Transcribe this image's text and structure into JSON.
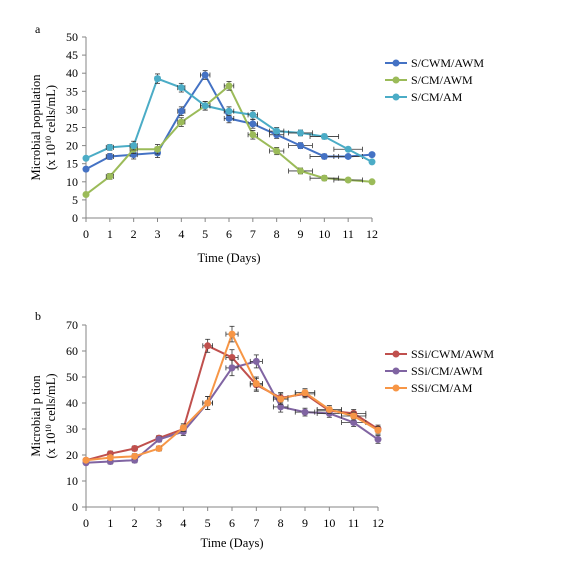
{
  "chart_data": [
    {
      "panel_label": "a",
      "type": "line",
      "xlabel": "Time (Days)",
      "ylabel": [
        "Microbial population",
        "(x 10",
        "10",
        " cells/mL)"
      ],
      "x": [
        0,
        1,
        2,
        3,
        4,
        5,
        6,
        7,
        8,
        9,
        10,
        11,
        12
      ],
      "xlim": [
        0,
        12
      ],
      "ylim": [
        0,
        50
      ],
      "yticks": [
        0,
        5,
        10,
        15,
        20,
        25,
        30,
        35,
        40,
        45,
        50
      ],
      "grid": false,
      "legend": "right",
      "series": [
        {
          "name": "S/CWM/AWM",
          "color": "#4472C4",
          "values": [
            13.5,
            17,
            17.5,
            18,
            29.5,
            39.5,
            27.5,
            26,
            23,
            20,
            17,
            17,
            17.5
          ]
        },
        {
          "name": "S/CM/AWM",
          "color": "#9BBB59",
          "values": [
            6.5,
            11.5,
            19,
            19,
            26.5,
            31,
            36.5,
            23,
            18.5,
            13,
            11,
            10.5,
            10
          ]
        },
        {
          "name": "S/CM/AM",
          "color": "#4BACC6",
          "values": [
            16.5,
            19.5,
            20,
            38.5,
            36,
            31,
            29.5,
            28.5,
            24,
            23.5,
            22.5,
            19,
            15.5
          ]
        }
      ]
    },
    {
      "panel_label": "b",
      "type": "line",
      "xlabel": "Time (Days)",
      "ylabel": [
        "Microbial p",
        "tion",
        "(x 10",
        "10",
        " cells/mL)"
      ],
      "x": [
        0,
        1,
        2,
        3,
        4,
        5,
        6,
        7,
        8,
        9,
        10,
        11,
        12
      ],
      "xlim": [
        0,
        12
      ],
      "ylim": [
        0,
        70
      ],
      "yticks": [
        0,
        10,
        20,
        30,
        40,
        50,
        60,
        70
      ],
      "grid": false,
      "legend": "right",
      "series": [
        {
          "name": "SSi/CWM/AWM",
          "color": "#C0504D",
          "values": [
            18,
            20.5,
            22.5,
            26.5,
            30,
            62,
            57.5,
            47,
            42,
            43.5,
            37,
            36,
            30
          ]
        },
        {
          "name": "SSi/CM/AWM",
          "color": "#8064A2",
          "values": [
            17,
            17.5,
            18,
            26,
            29,
            40,
            53.5,
            56,
            38.5,
            36.5,
            36,
            32.5,
            26
          ]
        },
        {
          "name": "SSi/CM/AM",
          "color": "#F79646",
          "values": [
            18,
            19,
            19.5,
            22.5,
            30.5,
            40,
            66.5,
            47.5,
            41.5,
            44,
            37.5,
            35,
            29.5
          ]
        }
      ]
    }
  ]
}
